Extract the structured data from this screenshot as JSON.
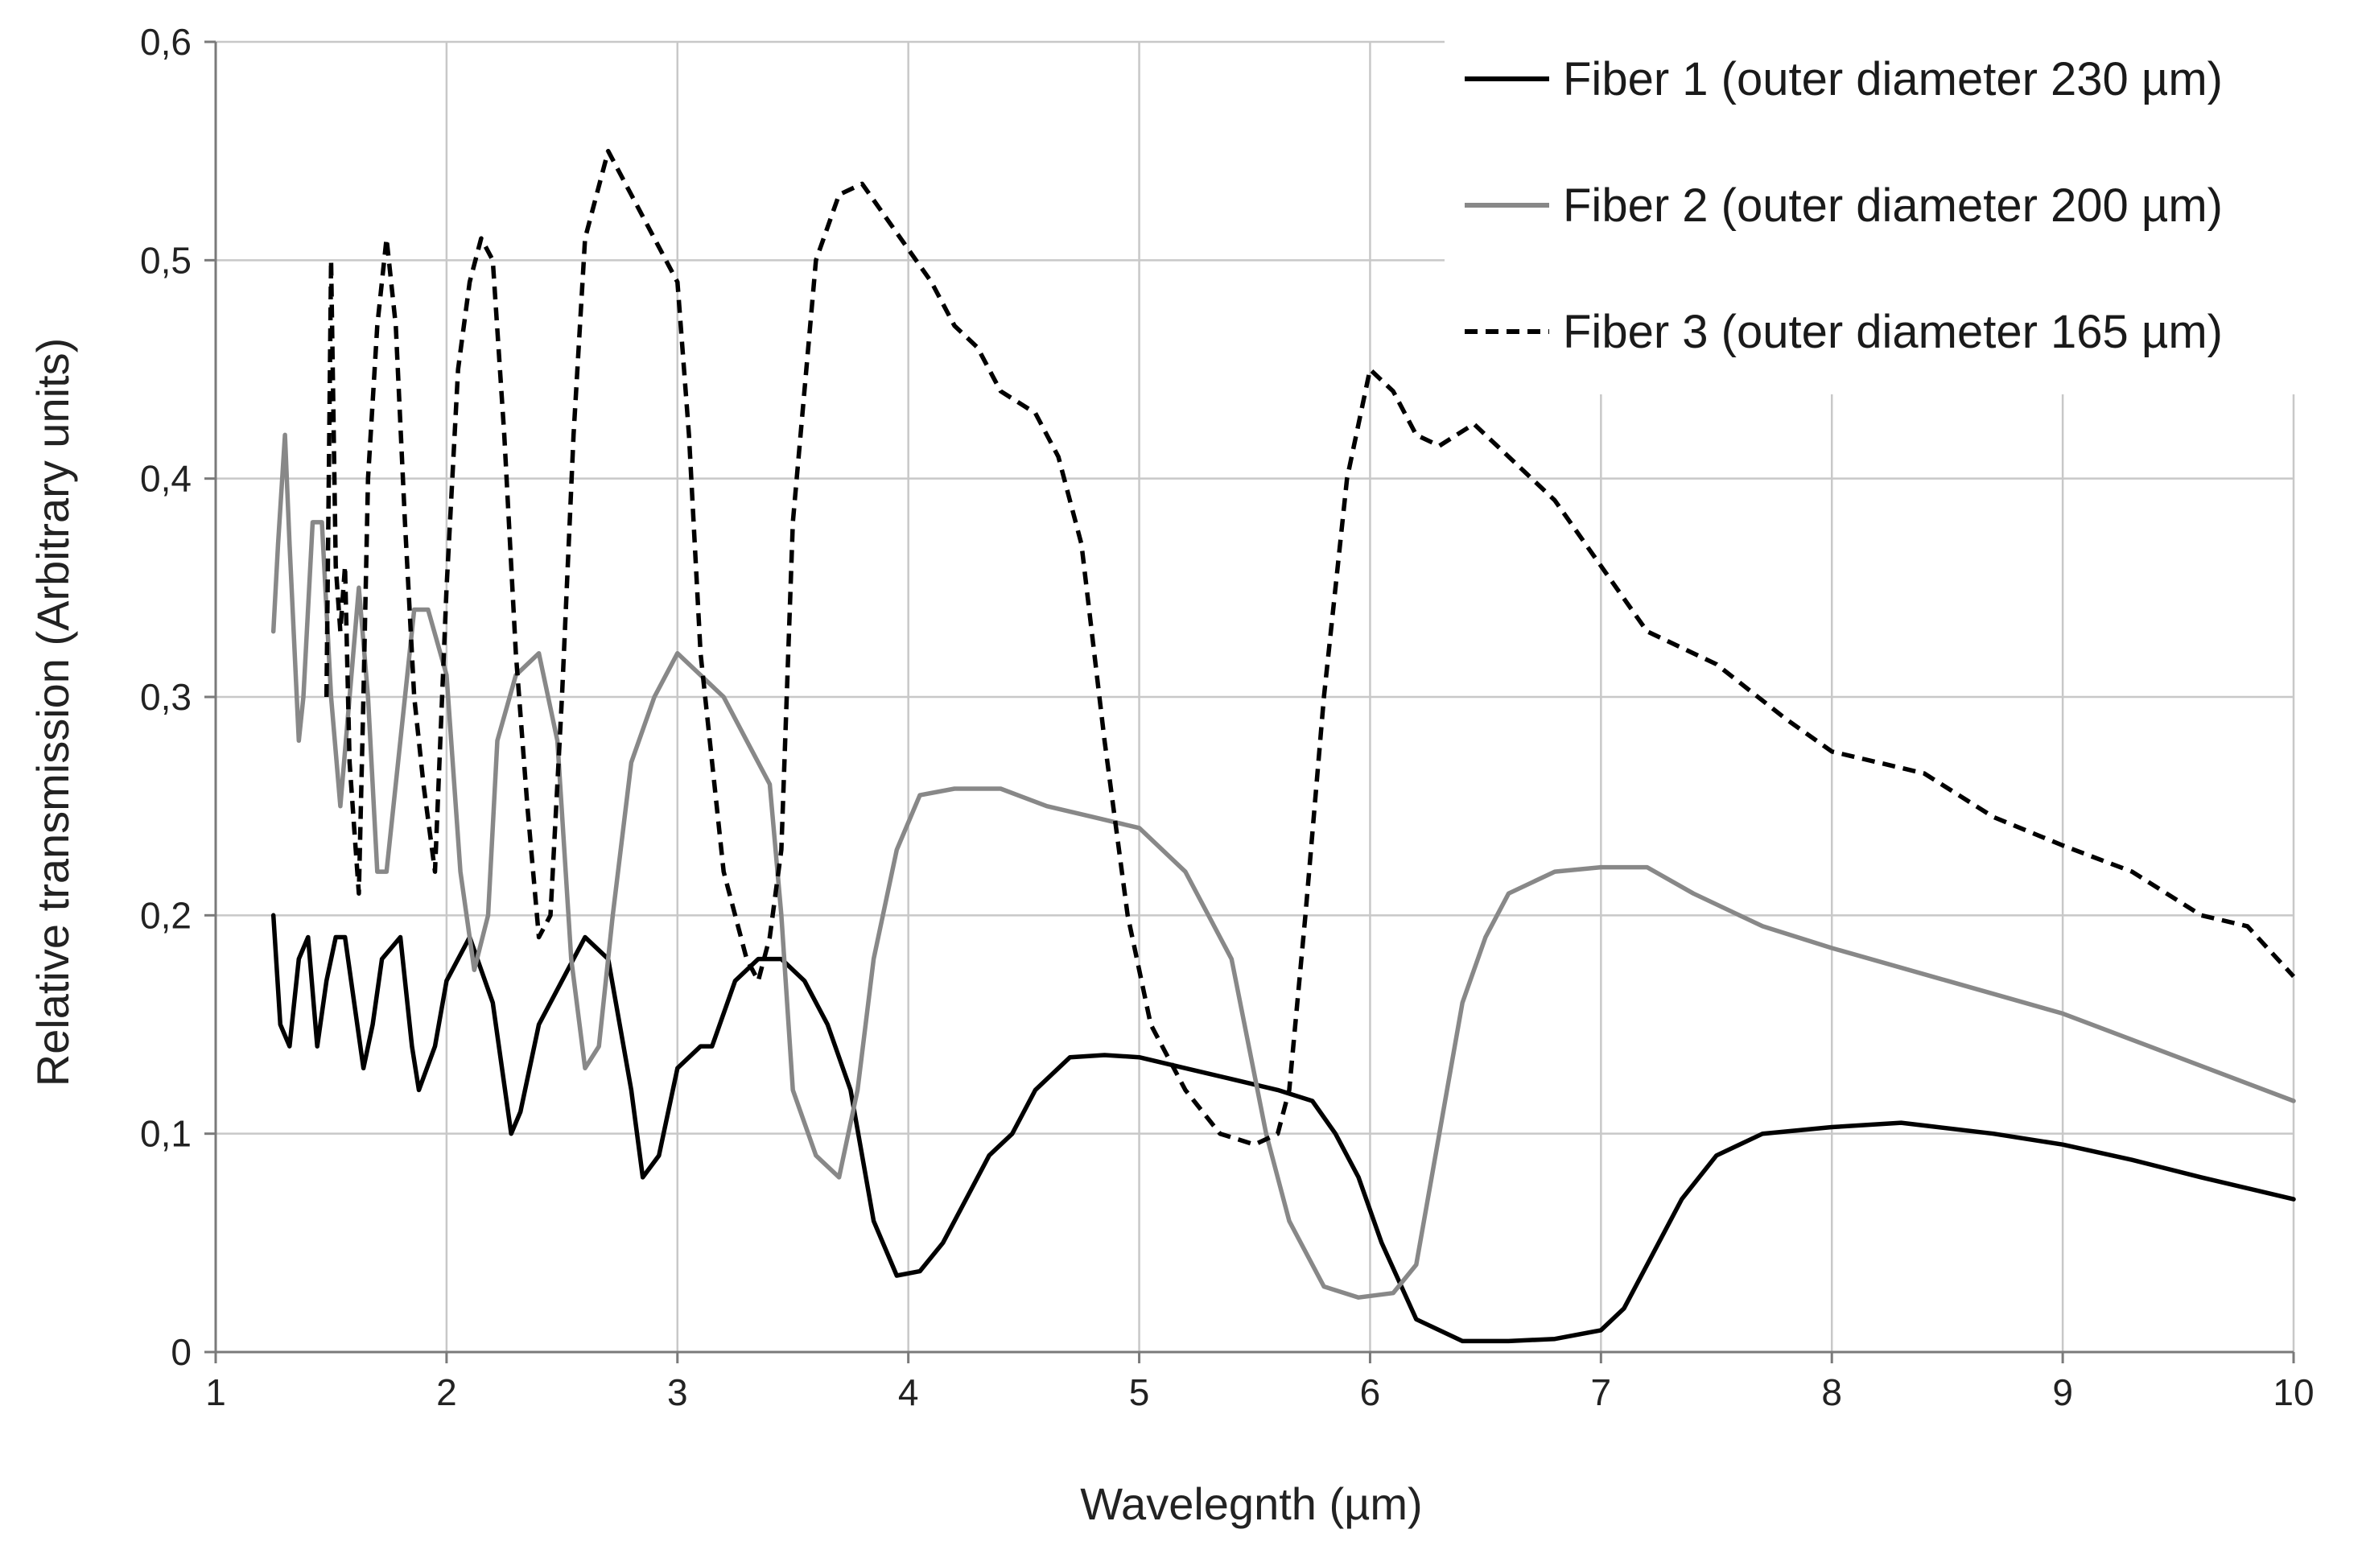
{
  "chart_data": {
    "type": "line",
    "xlabel": "Wavelegnth (µm)",
    "ylabel": "Relative transmission (Arbitrary units)",
    "xlim": [
      1,
      10
    ],
    "ylim": [
      0,
      0.6
    ],
    "xticks": [
      "1",
      "2",
      "3",
      "4",
      "5",
      "6",
      "7",
      "8",
      "9",
      "10"
    ],
    "yticks": [
      "0",
      "0,1",
      "0,2",
      "0,3",
      "0,4",
      "0,5",
      "0,6"
    ],
    "xtick_values": [
      1,
      2,
      3,
      4,
      5,
      6,
      7,
      8,
      9,
      10
    ],
    "ytick_values": [
      0,
      0.1,
      0.2,
      0.3,
      0.4,
      0.5,
      0.6
    ],
    "grid": true,
    "legend_position": "top-right",
    "series": [
      {
        "name": "Fiber 1 (outer diameter 230 µm)",
        "color": "#000000",
        "dash": "solid",
        "points": [
          [
            1.25,
            0.2
          ],
          [
            1.28,
            0.15
          ],
          [
            1.32,
            0.14
          ],
          [
            1.36,
            0.18
          ],
          [
            1.4,
            0.19
          ],
          [
            1.44,
            0.14
          ],
          [
            1.48,
            0.17
          ],
          [
            1.52,
            0.19
          ],
          [
            1.56,
            0.19
          ],
          [
            1.6,
            0.16
          ],
          [
            1.64,
            0.13
          ],
          [
            1.68,
            0.15
          ],
          [
            1.72,
            0.18
          ],
          [
            1.8,
            0.19
          ],
          [
            1.85,
            0.14
          ],
          [
            1.88,
            0.12
          ],
          [
            1.95,
            0.14
          ],
          [
            2.0,
            0.17
          ],
          [
            2.1,
            0.19
          ],
          [
            2.2,
            0.16
          ],
          [
            2.28,
            0.1
          ],
          [
            2.32,
            0.11
          ],
          [
            2.4,
            0.15
          ],
          [
            2.5,
            0.17
          ],
          [
            2.6,
            0.19
          ],
          [
            2.7,
            0.18
          ],
          [
            2.8,
            0.12
          ],
          [
            2.85,
            0.08
          ],
          [
            2.92,
            0.09
          ],
          [
            3.0,
            0.13
          ],
          [
            3.1,
            0.14
          ],
          [
            3.15,
            0.14
          ],
          [
            3.25,
            0.17
          ],
          [
            3.35,
            0.18
          ],
          [
            3.45,
            0.18
          ],
          [
            3.55,
            0.17
          ],
          [
            3.65,
            0.15
          ],
          [
            3.75,
            0.12
          ],
          [
            3.85,
            0.06
          ],
          [
            3.95,
            0.035
          ],
          [
            4.05,
            0.037
          ],
          [
            4.15,
            0.05
          ],
          [
            4.25,
            0.07
          ],
          [
            4.35,
            0.09
          ],
          [
            4.45,
            0.1
          ],
          [
            4.55,
            0.12
          ],
          [
            4.7,
            0.135
          ],
          [
            4.85,
            0.136
          ],
          [
            5.0,
            0.135
          ],
          [
            5.2,
            0.13
          ],
          [
            5.4,
            0.125
          ],
          [
            5.6,
            0.12
          ],
          [
            5.75,
            0.115
          ],
          [
            5.85,
            0.1
          ],
          [
            5.95,
            0.08
          ],
          [
            6.05,
            0.05
          ],
          [
            6.2,
            0.015
          ],
          [
            6.4,
            0.005
          ],
          [
            6.6,
            0.005
          ],
          [
            6.8,
            0.006
          ],
          [
            7.0,
            0.01
          ],
          [
            7.1,
            0.02
          ],
          [
            7.2,
            0.04
          ],
          [
            7.35,
            0.07
          ],
          [
            7.5,
            0.09
          ],
          [
            7.7,
            0.1
          ],
          [
            8.0,
            0.103
          ],
          [
            8.3,
            0.105
          ],
          [
            8.7,
            0.1
          ],
          [
            9.0,
            0.095
          ],
          [
            9.3,
            0.088
          ],
          [
            9.6,
            0.08
          ],
          [
            10.0,
            0.07
          ]
        ]
      },
      {
        "name": "Fiber 2 (outer diameter 200 µm)",
        "color": "#888888",
        "dash": "solid",
        "points": [
          [
            1.25,
            0.33
          ],
          [
            1.27,
            0.37
          ],
          [
            1.3,
            0.42
          ],
          [
            1.32,
            0.37
          ],
          [
            1.36,
            0.28
          ],
          [
            1.38,
            0.3
          ],
          [
            1.42,
            0.38
          ],
          [
            1.46,
            0.38
          ],
          [
            1.5,
            0.3
          ],
          [
            1.54,
            0.25
          ],
          [
            1.58,
            0.3
          ],
          [
            1.62,
            0.35
          ],
          [
            1.66,
            0.3
          ],
          [
            1.7,
            0.22
          ],
          [
            1.74,
            0.22
          ],
          [
            1.8,
            0.28
          ],
          [
            1.86,
            0.34
          ],
          [
            1.92,
            0.34
          ],
          [
            2.0,
            0.31
          ],
          [
            2.06,
            0.22
          ],
          [
            2.12,
            0.175
          ],
          [
            2.18,
            0.2
          ],
          [
            2.22,
            0.28
          ],
          [
            2.3,
            0.31
          ],
          [
            2.4,
            0.32
          ],
          [
            2.48,
            0.28
          ],
          [
            2.54,
            0.18
          ],
          [
            2.6,
            0.13
          ],
          [
            2.66,
            0.14
          ],
          [
            2.72,
            0.2
          ],
          [
            2.8,
            0.27
          ],
          [
            2.9,
            0.3
          ],
          [
            3.0,
            0.32
          ],
          [
            3.1,
            0.31
          ],
          [
            3.2,
            0.3
          ],
          [
            3.3,
            0.28
          ],
          [
            3.4,
            0.26
          ],
          [
            3.45,
            0.2
          ],
          [
            3.5,
            0.12
          ],
          [
            3.6,
            0.09
          ],
          [
            3.7,
            0.08
          ],
          [
            3.78,
            0.12
          ],
          [
            3.85,
            0.18
          ],
          [
            3.95,
            0.23
          ],
          [
            4.05,
            0.255
          ],
          [
            4.2,
            0.258
          ],
          [
            4.4,
            0.258
          ],
          [
            4.6,
            0.25
          ],
          [
            4.8,
            0.245
          ],
          [
            5.0,
            0.24
          ],
          [
            5.2,
            0.22
          ],
          [
            5.4,
            0.18
          ],
          [
            5.55,
            0.1
          ],
          [
            5.65,
            0.06
          ],
          [
            5.8,
            0.03
          ],
          [
            5.95,
            0.025
          ],
          [
            6.1,
            0.027
          ],
          [
            6.2,
            0.04
          ],
          [
            6.3,
            0.1
          ],
          [
            6.4,
            0.16
          ],
          [
            6.5,
            0.19
          ],
          [
            6.6,
            0.21
          ],
          [
            6.8,
            0.22
          ],
          [
            7.0,
            0.222
          ],
          [
            7.2,
            0.222
          ],
          [
            7.4,
            0.21
          ],
          [
            7.7,
            0.195
          ],
          [
            8.0,
            0.185
          ],
          [
            8.5,
            0.17
          ],
          [
            9.0,
            0.155
          ],
          [
            9.5,
            0.135
          ],
          [
            10.0,
            0.115
          ]
        ]
      },
      {
        "name": "Fiber 3 (outer diameter 165 µm)",
        "color": "#000000",
        "dash": "dashed",
        "points": [
          [
            1.48,
            0.3
          ],
          [
            1.5,
            0.5
          ],
          [
            1.52,
            0.36
          ],
          [
            1.54,
            0.33
          ],
          [
            1.56,
            0.36
          ],
          [
            1.58,
            0.27
          ],
          [
            1.6,
            0.24
          ],
          [
            1.62,
            0.21
          ],
          [
            1.64,
            0.3
          ],
          [
            1.66,
            0.4
          ],
          [
            1.7,
            0.47
          ],
          [
            1.74,
            0.51
          ],
          [
            1.78,
            0.47
          ],
          [
            1.82,
            0.38
          ],
          [
            1.86,
            0.3
          ],
          [
            1.9,
            0.26
          ],
          [
            1.95,
            0.22
          ],
          [
            2.0,
            0.35
          ],
          [
            2.05,
            0.45
          ],
          [
            2.1,
            0.49
          ],
          [
            2.15,
            0.51
          ],
          [
            2.2,
            0.5
          ],
          [
            2.25,
            0.42
          ],
          [
            2.3,
            0.32
          ],
          [
            2.35,
            0.25
          ],
          [
            2.4,
            0.19
          ],
          [
            2.45,
            0.2
          ],
          [
            2.5,
            0.3
          ],
          [
            2.55,
            0.42
          ],
          [
            2.6,
            0.51
          ],
          [
            2.7,
            0.55
          ],
          [
            2.8,
            0.53
          ],
          [
            2.9,
            0.51
          ],
          [
            3.0,
            0.49
          ],
          [
            3.05,
            0.42
          ],
          [
            3.1,
            0.32
          ],
          [
            3.2,
            0.22
          ],
          [
            3.3,
            0.18
          ],
          [
            3.35,
            0.17
          ],
          [
            3.4,
            0.19
          ],
          [
            3.45,
            0.23
          ],
          [
            3.5,
            0.38
          ],
          [
            3.6,
            0.5
          ],
          [
            3.7,
            0.53
          ],
          [
            3.8,
            0.535
          ],
          [
            3.9,
            0.52
          ],
          [
            4.0,
            0.505
          ],
          [
            4.1,
            0.49
          ],
          [
            4.2,
            0.47
          ],
          [
            4.3,
            0.46
          ],
          [
            4.4,
            0.44
          ],
          [
            4.55,
            0.43
          ],
          [
            4.65,
            0.41
          ],
          [
            4.75,
            0.37
          ],
          [
            4.85,
            0.28
          ],
          [
            4.95,
            0.2
          ],
          [
            5.05,
            0.15
          ],
          [
            5.2,
            0.12
          ],
          [
            5.35,
            0.1
          ],
          [
            5.5,
            0.095
          ],
          [
            5.6,
            0.1
          ],
          [
            5.65,
            0.12
          ],
          [
            5.72,
            0.2
          ],
          [
            5.8,
            0.3
          ],
          [
            5.9,
            0.4
          ],
          [
            6.0,
            0.45
          ],
          [
            6.1,
            0.44
          ],
          [
            6.2,
            0.42
          ],
          [
            6.3,
            0.415
          ],
          [
            6.45,
            0.425
          ],
          [
            6.6,
            0.41
          ],
          [
            6.8,
            0.39
          ],
          [
            7.0,
            0.36
          ],
          [
            7.2,
            0.33
          ],
          [
            7.5,
            0.315
          ],
          [
            7.8,
            0.29
          ],
          [
            8.0,
            0.275
          ],
          [
            8.4,
            0.265
          ],
          [
            8.7,
            0.245
          ],
          [
            9.0,
            0.232
          ],
          [
            9.3,
            0.22
          ],
          [
            9.6,
            0.2
          ],
          [
            9.8,
            0.195
          ],
          [
            10.0,
            0.172
          ]
        ]
      }
    ]
  }
}
